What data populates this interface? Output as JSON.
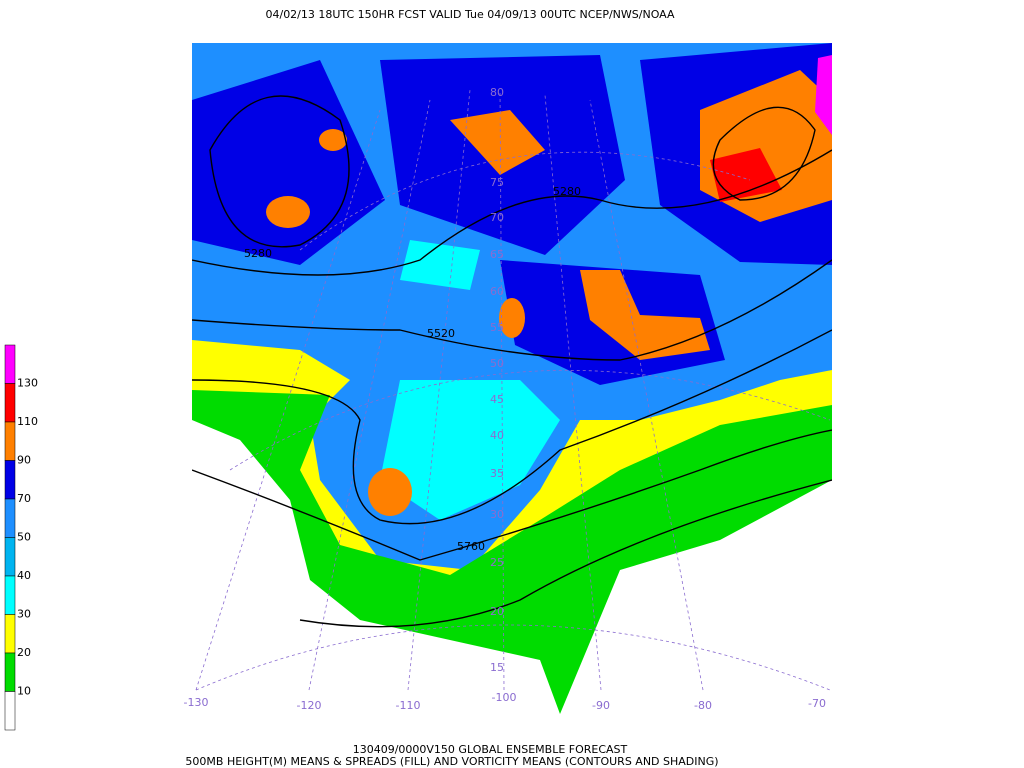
{
  "header": {
    "title": "04/02/13 18UTC  150HR  FCST VALID Tue 04/09/13 00UTC  NCEP/NWS/NOAA"
  },
  "legend": {
    "labels": [
      "130",
      "110",
      "90",
      "70",
      "50",
      "40",
      "30",
      "20",
      "10"
    ],
    "colors": [
      "#ff00ff",
      "#ff0000",
      "#ff8000",
      "#0000e6",
      "#1e8fff",
      "#00b4f0",
      "#00ffff",
      "#ffff00",
      "#00dc00",
      "#ffffff"
    ]
  },
  "map": {
    "longitude_labels": [
      "-130",
      "-120",
      "-110",
      "-100",
      "-90",
      "-80",
      "-70"
    ],
    "latitude_labels": [
      "80",
      "75",
      "70",
      "65",
      "60",
      "55",
      "50",
      "45",
      "40",
      "35",
      "30",
      "25",
      "20",
      "15"
    ],
    "contour_labels": [
      "5280",
      "5280",
      "5520",
      "5760"
    ]
  },
  "footer": {
    "line1": "130409/0000V150 GLOBAL ENSEMBLE FORECAST",
    "line2": "500MB HEIGHT(M) MEANS & SPREADS (FILL) AND VORTICITY MEANS (CONTOURS AND SHADING)"
  }
}
